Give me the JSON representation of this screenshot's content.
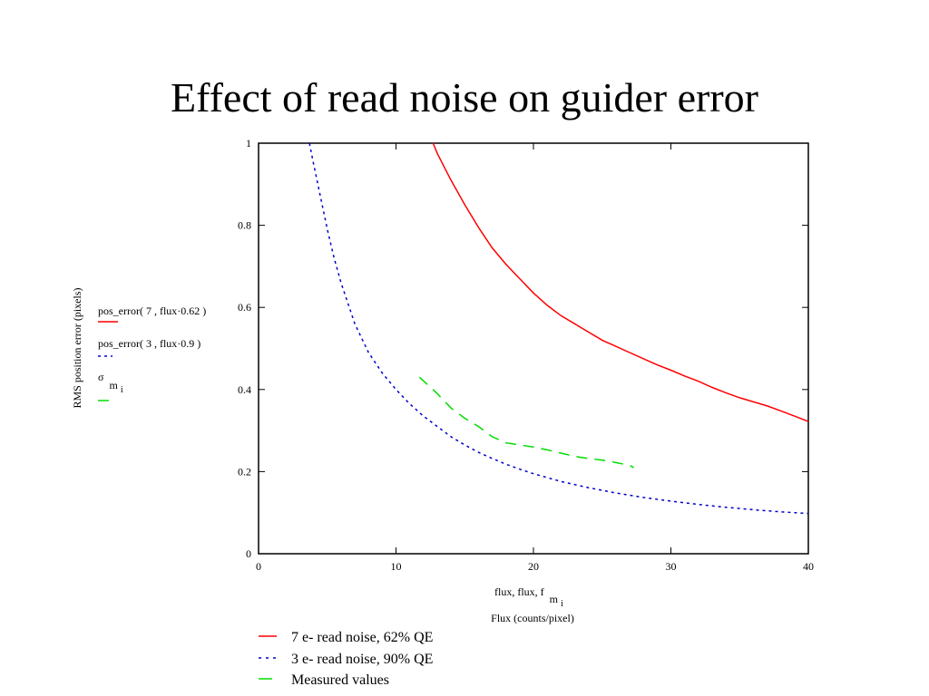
{
  "slide": {
    "title": "Effect of read noise on guider error"
  },
  "chart_data": {
    "type": "line",
    "xlabel_expr": "flux, flux, f",
    "xlabel_expr_sub": "m",
    "xlabel_expr_subsub": "i",
    "xlabel": "Flux (counts/pixel)",
    "ylabel": "RMS position error (pixels)",
    "xlim": [
      0,
      40
    ],
    "ylim": [
      0,
      1
    ],
    "x_ticks": [
      0,
      10,
      20,
      30,
      40
    ],
    "y_ticks": [
      0,
      0.2,
      0.4,
      0.6,
      0.8,
      1
    ],
    "grid": false,
    "series_legend": [
      {
        "expr": "pos_error( 7 , flux·0.62 )"
      },
      {
        "expr": "pos_error( 3 , flux·0.9 )"
      },
      {
        "expr": "σ",
        "sub": "m",
        "subsub": "i"
      }
    ],
    "legend_bottom": [
      "7 e- read noise, 62% QE",
      "3 e- read noise, 90% QE",
      "Measured values"
    ],
    "series": [
      {
        "color": "#ff0000",
        "style": "solid",
        "x": [
          12.7,
          13,
          14,
          15,
          16,
          17,
          18,
          19,
          20,
          21,
          22,
          23,
          24,
          25,
          26,
          27,
          28,
          29,
          30,
          31,
          32,
          33,
          34,
          35,
          36,
          37,
          38,
          39,
          40
        ],
        "y": [
          1.0,
          0.975,
          0.91,
          0.85,
          0.795,
          0.745,
          0.705,
          0.67,
          0.635,
          0.605,
          0.58,
          0.56,
          0.54,
          0.52,
          0.505,
          0.49,
          0.475,
          0.46,
          0.447,
          0.433,
          0.42,
          0.405,
          0.392,
          0.38,
          0.37,
          0.36,
          0.348,
          0.335,
          0.322
        ]
      },
      {
        "color": "#0000cc",
        "style": "dotted",
        "x": [
          3.7,
          4,
          4.5,
          5,
          5.5,
          6,
          7,
          8,
          9,
          10,
          11,
          12,
          13,
          14,
          15,
          16,
          17,
          18,
          19,
          20,
          22,
          24,
          26,
          28,
          30,
          32,
          34,
          36,
          38,
          40
        ],
        "y": [
          1.0,
          0.95,
          0.87,
          0.79,
          0.72,
          0.66,
          0.56,
          0.49,
          0.44,
          0.4,
          0.365,
          0.335,
          0.31,
          0.285,
          0.265,
          0.247,
          0.232,
          0.218,
          0.206,
          0.195,
          0.176,
          0.161,
          0.148,
          0.137,
          0.128,
          0.12,
          0.113,
          0.107,
          0.102,
          0.098
        ]
      },
      {
        "color": "#00dd00",
        "style": "dashed",
        "x": [
          11.7,
          13,
          14,
          15,
          16,
          17,
          18,
          19,
          20,
          21,
          22,
          23,
          24,
          25,
          26,
          27,
          27.3
        ],
        "y": [
          0.43,
          0.39,
          0.355,
          0.33,
          0.31,
          0.285,
          0.27,
          0.265,
          0.26,
          0.253,
          0.245,
          0.237,
          0.232,
          0.228,
          0.222,
          0.215,
          0.21
        ]
      }
    ]
  }
}
